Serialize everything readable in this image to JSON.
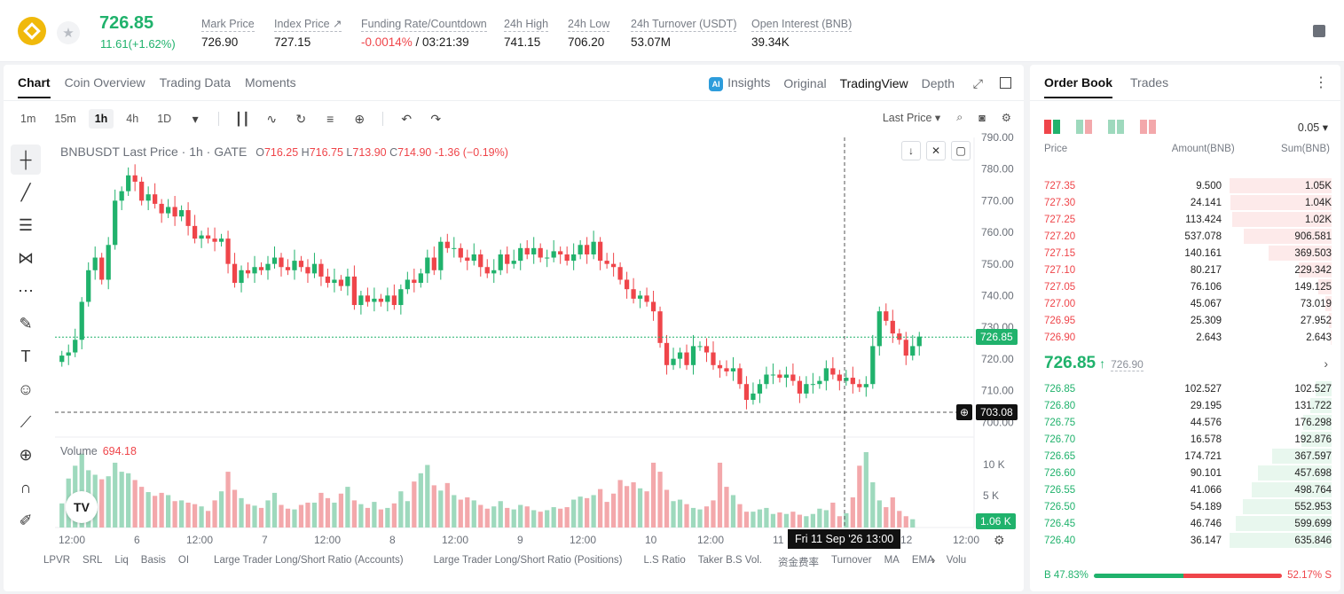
{
  "ticker": {
    "price": "726.85",
    "change": "11.61(+1.62%)",
    "stats": [
      {
        "label": "Mark Price",
        "value": "726.90"
      },
      {
        "label": "Index Price ↗",
        "value": "727.15"
      },
      {
        "label": "Funding Rate/Countdown",
        "value_neg": "-0.0014%",
        "value": " / 03:21:39"
      },
      {
        "label": "24h High",
        "value": "741.15"
      },
      {
        "label": "24h Low",
        "value": "706.20"
      },
      {
        "label": "24h Turnover (USDT)",
        "value": "53.07M"
      },
      {
        "label": "Open Interest (BNB)",
        "value": "39.34K"
      }
    ]
  },
  "chart_tabs": [
    "Chart",
    "Coin Overview",
    "Trading Data",
    "Moments"
  ],
  "view_tabs": {
    "insights": "Insights",
    "original": "Original",
    "tradingview": "TradingView",
    "depth": "Depth"
  },
  "ai_badge": "AI",
  "timeframes": [
    "1m",
    "15m",
    "1h",
    "4h",
    "1D"
  ],
  "active_timeframe": "1h",
  "price_type": "Last Price",
  "legend": {
    "symbol": "BNBUSDT Last Price · 1h · GATE",
    "o": "716.25",
    "h": "716.75",
    "l": "713.90",
    "c": "714.90",
    "chg": "-1.36 (−0.19%)"
  },
  "volume_legend": {
    "label": "Volume",
    "value": "694.18"
  },
  "tags": {
    "last": "726.85",
    "cursor": "703.08",
    "vol": "1.06 K",
    "cursor_time": "Fri 11 Sep '26   13:00"
  },
  "tv_logo": "TV",
  "indicators": [
    "LPVR",
    "SRL",
    "Liq",
    "Basis",
    "OI",
    "Large Trader Long/Short Ratio (Accounts)",
    "Large Trader Long/Short Ratio (Positions)",
    "L.S Ratio",
    "Taker B.S Vol.",
    "资金费率",
    "Turnover",
    "MA",
    "EMA",
    "Volu"
  ],
  "colors": {
    "up": "#20b26c",
    "down": "#ef454a",
    "up_vol": "#9ed9bd",
    "down_vol": "#f3a8ab"
  },
  "chart_data": {
    "type": "candlestick",
    "ylim": [
      700,
      790
    ],
    "y_ticks": [
      "790.00",
      "780.00",
      "770.00",
      "760.00",
      "750.00",
      "740.00",
      "730.00",
      "720.00",
      "710.00",
      "700.00"
    ],
    "x_ticks": [
      "12:00",
      "6",
      "12:00",
      "7",
      "12:00",
      "8",
      "12:00",
      "9",
      "12:00",
      "10",
      "12:00",
      "11",
      "12:00",
      "12",
      "12:00"
    ],
    "volume_ticks": [
      "10 K",
      "5 K"
    ],
    "closes": [
      721,
      722,
      726,
      738,
      748,
      752,
      745,
      756,
      770,
      773,
      778,
      776,
      770,
      772,
      769,
      766,
      768,
      765,
      767,
      762,
      758,
      759,
      758,
      757,
      758,
      750,
      744,
      748,
      747,
      749,
      748,
      750,
      752,
      749,
      748,
      751,
      749,
      747,
      750,
      746,
      744,
      745,
      743,
      746,
      737,
      740,
      738,
      739,
      738,
      740,
      737,
      742,
      745,
      744,
      747,
      752,
      748,
      757,
      755,
      755,
      752,
      751,
      753,
      749,
      747,
      748,
      753,
      750,
      751,
      755,
      753,
      755,
      752,
      752,
      754,
      753,
      751,
      753,
      756,
      753,
      757,
      751,
      750,
      749,
      745,
      742,
      739,
      740,
      738,
      735,
      725,
      718,
      720,
      722,
      718,
      724,
      724,
      722,
      718,
      717,
      716,
      717,
      712,
      707,
      709,
      712,
      715,
      715,
      714,
      715,
      713,
      709,
      712,
      712,
      713,
      717,
      715,
      713,
      714,
      712,
      711,
      712,
      724,
      735,
      732,
      728,
      726,
      721,
      724,
      727
    ],
    "volumes": [
      3200,
      6500,
      8200,
      9800,
      7600,
      7000,
      6400,
      6800,
      8600,
      7400,
      7200,
      6300,
      5400,
      4700,
      4200,
      4600,
      4300,
      3500,
      3600,
      3300,
      3100,
      2800,
      2200,
      3600,
      4800,
      7400,
      5000,
      3900,
      3100,
      2900,
      2600,
      3600,
      4600,
      3000,
      2500,
      2400,
      3000,
      3300,
      3300,
      4600,
      3900,
      3300,
      4500,
      5400,
      3600,
      3100,
      2600,
      3400,
      2400,
      2600,
      3200,
      4800,
      3500,
      6100,
      7200,
      8300,
      5600,
      4900,
      5900,
      4300,
      3700,
      4000,
      3600,
      3000,
      2500,
      2800,
      3500,
      2600,
      2400,
      3000,
      2800,
      2300,
      2100,
      2300,
      2700,
      2500,
      2700,
      3700,
      4100,
      3900,
      4300,
      5100,
      3400,
      4500,
      6300,
      5500,
      6000,
      5200,
      4800,
      8600,
      7400,
      5000,
      3500,
      3700,
      3100,
      2600,
      2400,
      2800,
      3600,
      8600,
      5400,
      4300,
      3100,
      2100,
      2100,
      2400,
      2600,
      1800,
      2000,
      1800,
      2100,
      1700,
      1500,
      1800,
      2500,
      2300,
      3300,
      1500,
      1900,
      4000,
      8200,
      10000,
      6000,
      3600,
      2700,
      4000,
      2200,
      1500,
      1100
    ]
  },
  "book": {
    "tabs": [
      "Order Book",
      "Trades"
    ],
    "precision": "0.05 ▾",
    "headers": {
      "price": "Price",
      "amount": "Amount(BNB)",
      "sum": "Sum(BNB)"
    },
    "asks": [
      {
        "price": "727.35",
        "amount": "9.500",
        "sum": "1.05K",
        "depth": 1.0
      },
      {
        "price": "727.30",
        "amount": "24.141",
        "sum": "1.04K",
        "depth": 0.99
      },
      {
        "price": "727.25",
        "amount": "113.424",
        "sum": "1.02K",
        "depth": 0.97
      },
      {
        "price": "727.20",
        "amount": "537.078",
        "sum": "906.581",
        "depth": 0.86
      },
      {
        "price": "727.15",
        "amount": "140.161",
        "sum": "369.503",
        "depth": 0.62
      },
      {
        "price": "727.10",
        "amount": "80.217",
        "sum": "229.342",
        "depth": 0.32
      },
      {
        "price": "727.05",
        "amount": "76.106",
        "sum": "149.125",
        "depth": 0.13
      },
      {
        "price": "727.00",
        "amount": "45.067",
        "sum": "73.019",
        "depth": 0.06
      },
      {
        "price": "726.95",
        "amount": "25.309",
        "sum": "27.952",
        "depth": 0.03
      },
      {
        "price": "726.90",
        "amount": "2.643",
        "sum": "2.643",
        "depth": 0.005
      }
    ],
    "mid": {
      "price": "726.85",
      "arrow": "↑",
      "mark": "726.90",
      "chev": "›"
    },
    "bids": [
      {
        "price": "726.85",
        "amount": "102.527",
        "sum": "102.527",
        "depth": 0.16
      },
      {
        "price": "726.80",
        "amount": "29.195",
        "sum": "131.722",
        "depth": 0.21
      },
      {
        "price": "726.75",
        "amount": "44.576",
        "sum": "176.298",
        "depth": 0.28
      },
      {
        "price": "726.70",
        "amount": "16.578",
        "sum": "192.876",
        "depth": 0.3
      },
      {
        "price": "726.65",
        "amount": "174.721",
        "sum": "367.597",
        "depth": 0.58
      },
      {
        "price": "726.60",
        "amount": "90.101",
        "sum": "457.698",
        "depth": 0.72
      },
      {
        "price": "726.55",
        "amount": "41.066",
        "sum": "498.764",
        "depth": 0.78
      },
      {
        "price": "726.50",
        "amount": "54.189",
        "sum": "552.953",
        "depth": 0.87
      },
      {
        "price": "726.45",
        "amount": "46.746",
        "sum": "599.699",
        "depth": 0.94
      },
      {
        "price": "726.40",
        "amount": "36.147",
        "sum": "635.846",
        "depth": 1.0
      }
    ],
    "ratio": {
      "buy": "B  47.83%",
      "sell": "52.17%  S",
      "buy_frac": 0.4783
    }
  }
}
